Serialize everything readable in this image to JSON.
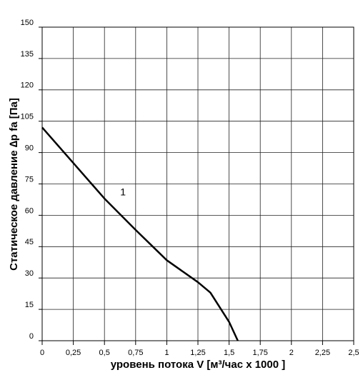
{
  "chart_data": {
    "type": "line",
    "xlabel": "уровень потока  V [м³/час x 1000 ]",
    "ylabel": "Статическое давление  ∆p fa [Па]",
    "x": [
      0,
      0.25,
      0.5,
      0.75,
      1.0,
      1.25,
      1.35,
      1.5,
      1.57
    ],
    "series": [
      {
        "name": "1",
        "color": "#000000",
        "values": [
          102,
          85,
          68,
          53,
          38.5,
          28,
          23,
          9,
          0
        ]
      }
    ],
    "xlim": [
      0,
      2.5
    ],
    "xticks": [
      0,
      {
        "value": 0.25,
        "label": "0,25"
      },
      {
        "value": 0.5,
        "label": "0,5"
      },
      {
        "value": 0.75,
        "label": "0,75"
      },
      1,
      {
        "value": 1.25,
        "label": "1,25"
      },
      {
        "value": 1.5,
        "label": "1,5"
      },
      {
        "value": 1.75,
        "label": "1,75"
      },
      2,
      {
        "value": 2.25,
        "label": "2,25"
      },
      {
        "value": 2.5,
        "label": "2,5"
      }
    ],
    "ylim": [
      0,
      150
    ],
    "yticks": [
      0,
      15,
      30,
      45,
      60,
      75,
      90,
      105,
      120,
      135,
      150
    ],
    "grid": true
  }
}
